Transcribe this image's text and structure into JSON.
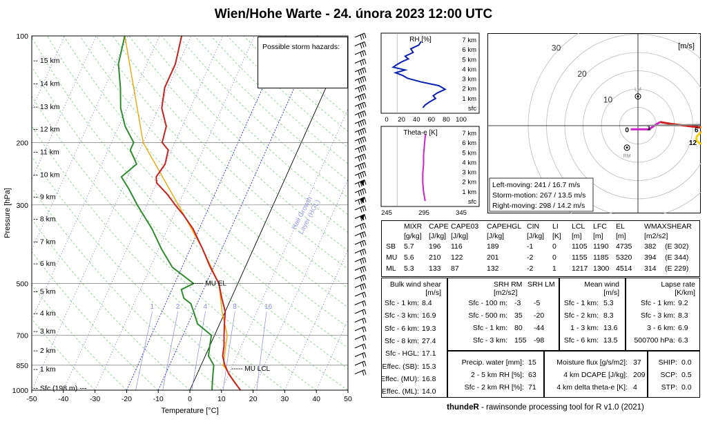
{
  "title": "Wien/Hohe Warte - 24. února 2023 12:00 UTC",
  "footer": {
    "bold": "thundeR",
    "rest": " - rawinsonde processing tool for R v1.0 (2021)"
  },
  "skewt": {
    "xlabel": "Temperature [°C]",
    "ylabel": "Pressure [hPa]",
    "xticks": [
      -50,
      -40,
      -30,
      -20,
      -10,
      0,
      10,
      20,
      30,
      40,
      50
    ],
    "pticks": [
      100,
      200,
      300,
      500,
      700,
      850,
      1000
    ],
    "heights": [
      {
        "label": "15 km",
        "p": 117
      },
      {
        "label": "14 km",
        "p": 136
      },
      {
        "label": "13 km",
        "p": 158
      },
      {
        "label": "12 km",
        "p": 183
      },
      {
        "label": "11 km",
        "p": 212
      },
      {
        "label": "10 km",
        "p": 246
      },
      {
        "label": "9 km",
        "p": 284
      },
      {
        "label": "8 km",
        "p": 328
      },
      {
        "label": "7 km",
        "p": 380
      },
      {
        "label": "6 km",
        "p": 438
      },
      {
        "label": "5 km",
        "p": 525
      },
      {
        "label": "4 km",
        "p": 605
      },
      {
        "label": "3 km",
        "p": 680
      },
      {
        "label": "2 km",
        "p": 770
      },
      {
        "label": "1 km",
        "p": 870
      },
      {
        "label": "Sfc (198 m) ---",
        "p": 985
      }
    ],
    "mixing_labels": [
      "1",
      "2",
      "4",
      "8",
      "16"
    ],
    "hail_label": "Hail Growth\nLayer (HGL)",
    "mu_el": "MU EL",
    "mu_lcl": "MU LCL",
    "hazards": "Possible storm hazards:",
    "temperature": [
      [
        1000,
        16
      ],
      [
        950,
        13
      ],
      [
        900,
        10
      ],
      [
        850,
        7.5
      ],
      [
        800,
        5.5
      ],
      [
        750,
        4.5
      ],
      [
        700,
        3
      ],
      [
        650,
        1.5
      ],
      [
        600,
        0
      ],
      [
        550,
        -3
      ],
      [
        500,
        -6
      ],
      [
        450,
        -11
      ],
      [
        400,
        -16
      ],
      [
        350,
        -22
      ],
      [
        320,
        -27
      ],
      [
        300,
        -31
      ],
      [
        280,
        -35
      ],
      [
        260,
        -40
      ],
      [
        250,
        -41
      ],
      [
        230,
        -40
      ],
      [
        210,
        -41
      ],
      [
        200,
        -44
      ],
      [
        180,
        -45
      ],
      [
        160,
        -49
      ],
      [
        140,
        -51
      ],
      [
        120,
        -51
      ],
      [
        100,
        -53
      ]
    ],
    "dewpoint": [
      [
        1000,
        7
      ],
      [
        950,
        6
      ],
      [
        900,
        5
      ],
      [
        850,
        4
      ],
      [
        800,
        1
      ],
      [
        750,
        0
      ],
      [
        700,
        -1
      ],
      [
        650,
        -7
      ],
      [
        600,
        -10
      ],
      [
        570,
        -12
      ],
      [
        550,
        -15
      ],
      [
        520,
        -17
      ],
      [
        500,
        -14
      ],
      [
        450,
        -23
      ],
      [
        400,
        -29
      ],
      [
        350,
        -35
      ],
      [
        300,
        -43
      ],
      [
        270,
        -48
      ],
      [
        250,
        -52
      ],
      [
        230,
        -49
      ],
      [
        210,
        -53
      ],
      [
        200,
        -53
      ],
      [
        180,
        -58
      ],
      [
        160,
        -62
      ],
      [
        140,
        -65
      ],
      [
        120,
        -69
      ],
      [
        100,
        -71
      ]
    ],
    "parcel": [
      [
        1000,
        16
      ],
      [
        850,
        7
      ],
      [
        700,
        4
      ],
      [
        600,
        -1
      ],
      [
        500,
        -6
      ],
      [
        400,
        -16
      ],
      [
        300,
        -30
      ],
      [
        200,
        -50
      ],
      [
        100,
        -71
      ]
    ],
    "colors": {
      "temperature": "#cc1f1f",
      "dewpoint": "#2e8b2e",
      "parcel": "#f0a500",
      "isotherm": "#2222cc",
      "mixing": "#8888ee",
      "adiabat": "#7ccf7c"
    }
  },
  "rh_panel": {
    "label": "RH [%]",
    "xticks": [
      "0",
      "20",
      "40",
      "60",
      "80",
      "100"
    ],
    "levels": [
      "7 km",
      "6 km",
      "5 km",
      "4 km",
      "3 km",
      "2 km",
      "1 km",
      "sfc"
    ],
    "profile": [
      [
        0,
        52
      ],
      [
        0.3,
        55
      ],
      [
        0.6,
        60
      ],
      [
        1,
        68
      ],
      [
        1.3,
        65
      ],
      [
        1.6,
        70
      ],
      [
        2,
        80
      ],
      [
        2.4,
        72
      ],
      [
        2.8,
        50
      ],
      [
        3.2,
        33
      ],
      [
        3.5,
        27
      ],
      [
        3.8,
        18
      ],
      [
        4.1,
        30
      ],
      [
        4.4,
        15
      ],
      [
        4.7,
        20
      ],
      [
        5,
        26
      ],
      [
        5.3,
        34
      ],
      [
        5.6,
        30
      ],
      [
        6,
        40
      ],
      [
        6.4,
        37
      ],
      [
        6.8,
        47
      ],
      [
        7.2,
        50
      ]
    ],
    "color": "#0a1fb4"
  },
  "thetae_panel": {
    "label": "Theta-e [K]",
    "xticks": [
      "245",
      "295",
      "345"
    ],
    "levels": [
      "7 km",
      "6 km",
      "5 km",
      "4 km",
      "3 km",
      "2 km",
      "1 km",
      "sfc"
    ],
    "profile": [
      [
        0,
        300
      ],
      [
        1,
        298
      ],
      [
        2,
        297
      ],
      [
        3,
        297
      ],
      [
        4,
        298
      ],
      [
        5,
        298
      ],
      [
        6,
        299
      ],
      [
        7,
        300
      ],
      [
        7.3,
        301
      ]
    ],
    "color": "#cc22cc"
  },
  "hodograph": {
    "unit": "[m/s]",
    "rings": [
      "10",
      "20",
      "30"
    ],
    "lm": "LM",
    "rm": "RM",
    "height_labels": [
      "0",
      "1",
      "3",
      "6",
      "9",
      "12"
    ],
    "points": [
      [
        -2,
        -1
      ],
      [
        3,
        -1
      ],
      [
        6,
        1
      ],
      [
        9,
        0.5
      ],
      [
        13,
        0
      ],
      [
        17,
        -0.5
      ],
      [
        19,
        0
      ],
      [
        17,
        -2
      ],
      [
        16,
        -3
      ],
      [
        16,
        -4
      ],
      [
        17,
        -5
      ],
      [
        20,
        -3
      ],
      [
        22,
        -2
      ],
      [
        23,
        -1
      ],
      [
        24,
        -2
      ]
    ],
    "summary": [
      "Left-moving: 241 / 16.7 m/s",
      "Storm-motion: 267 / 13.5 m/s",
      "Right-moving: 298 / 14.2 m/s"
    ]
  },
  "params_table": {
    "headers": [
      "MIXR",
      "CAPE",
      "CAPE03",
      "CAPEHGL",
      "CIN",
      "LI",
      "LCL",
      "LFC",
      "EL",
      "WMAXSHEAR"
    ],
    "units": [
      "[g/kg]",
      "[J/kg]",
      "[J/kg]",
      "[J/kg]",
      "[J/kg]",
      "[K]",
      "[m]",
      "[m]",
      "[m]",
      "[m2/s2]"
    ],
    "rows": [
      [
        "SB",
        "5.7",
        "196",
        "116",
        "189",
        "-1",
        "0",
        "1105",
        "1190",
        "4735",
        "382",
        "(E 302)"
      ],
      [
        "MU",
        "5.6",
        "210",
        "122",
        "201",
        "-2",
        "0",
        "1155",
        "1185",
        "5320",
        "394",
        "(E 344)"
      ],
      [
        "ML",
        "5.3",
        "133",
        "87",
        "132",
        "-2",
        "1",
        "1217",
        "1300",
        "4514",
        "314",
        "(E 229)"
      ]
    ]
  },
  "bulk_shear": {
    "title": "Bulk wind shear",
    "unit": "[m/s]",
    "rows": [
      [
        "Sfc - 1 km:",
        "8.4"
      ],
      [
        "Sfc - 3 km:",
        "16.9"
      ],
      [
        "Sfc - 6 km:",
        "19.3"
      ],
      [
        "Sfc - 8 km:",
        "27.4"
      ],
      [
        "Sfc - HGL:",
        "17.1"
      ],
      [
        "Effec. (SB):",
        "15.3"
      ],
      [
        "Effec. (MU):",
        "16.8"
      ],
      [
        "Effec. (ML):",
        "14.0"
      ]
    ]
  },
  "srh": {
    "h_rm": "SRH RM",
    "h_lm": "SRH LM",
    "unit": "[m2/s2]",
    "rows": [
      [
        "Sfc - 100 m:",
        "-3",
        "-5"
      ],
      [
        "Sfc - 500 m:",
        "35",
        "-20"
      ],
      [
        "Sfc - 1 km:",
        "80",
        "-44"
      ],
      [
        "Sfc - 3 km:",
        "155",
        "-98"
      ]
    ]
  },
  "mean_wind": {
    "title": "Mean wind",
    "unit": "[m/s]",
    "rows": [
      [
        "Sfc - 1 km:",
        "5.3"
      ],
      [
        "Sfc - 2 km:",
        "8.3"
      ],
      [
        "1 - 3 km:",
        "13.6"
      ],
      [
        "Sfc - 6 km:",
        "13.5"
      ]
    ]
  },
  "lapse": {
    "title": "Lapse rate",
    "unit": "[K/km]",
    "rows": [
      [
        "Sfc - 1 km:",
        "9.2"
      ],
      [
        "Sfc - 3 km:",
        "8.3"
      ],
      [
        "3 - 6 km:",
        "6.9"
      ],
      [
        "500700 hPa:",
        "6.3"
      ]
    ]
  },
  "moisture": {
    "rows": [
      [
        "Precip. water [mm]:",
        "15"
      ],
      [
        "2 - 5 km RH [%]:",
        "63"
      ],
      [
        "Sfc - 2 km RH [%]:",
        "71"
      ]
    ]
  },
  "flux": {
    "rows": [
      [
        "Moisture flux [g/s/m2]:",
        "37"
      ],
      [
        "4 km DCAPE [J/kg]:",
        "209"
      ],
      [
        "4 km delta theta-e [K]:",
        "4"
      ]
    ]
  },
  "composite": {
    "rows": [
      [
        "SHIP:",
        "0.0"
      ],
      [
        "SCP:",
        "0.5"
      ],
      [
        "STP:",
        "0.0"
      ]
    ]
  }
}
